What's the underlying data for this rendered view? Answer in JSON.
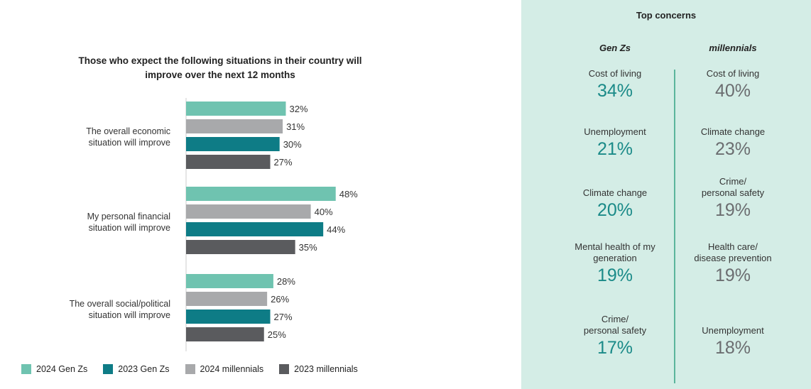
{
  "chart_data": {
    "type": "bar",
    "orientation": "horizontal",
    "title": "Those who expect the following situations in their country will improve over the next 12 months",
    "categories": [
      "The overall economic situation will improve",
      "My personal financial situation will improve",
      "The overall social/political situation will improve"
    ],
    "series": [
      {
        "name": "2024 Gen Zs",
        "color": "#6fc3b0",
        "values": [
          32,
          48,
          28
        ]
      },
      {
        "name": "2024 millennials",
        "color": "#a8a9ab",
        "values": [
          31,
          40,
          26
        ]
      },
      {
        "name": "2023 Gen Zs",
        "color": "#0e7c86",
        "values": [
          30,
          44,
          27
        ]
      },
      {
        "name": "2023 millennials",
        "color": "#5a5b5e",
        "values": [
          27,
          35,
          25
        ]
      }
    ],
    "value_suffix": "%",
    "legend_order": [
      "2024 Gen Zs",
      "2023 Gen Zs",
      "2024 millennials",
      "2023 millennials"
    ],
    "legend_position": "bottom"
  },
  "concerns": {
    "title": "Top concerns",
    "genz": {
      "header": "Gen Zs",
      "color": "#1a8a88",
      "items": [
        {
          "label": "Cost of living",
          "value": "34%"
        },
        {
          "label": "Unemployment",
          "value": "21%"
        },
        {
          "label": "Climate change",
          "value": "20%"
        },
        {
          "label": "Mental health of my generation",
          "value": "19%"
        },
        {
          "label": "Crime/ personal safety",
          "value": "17%"
        }
      ]
    },
    "millennials": {
      "header": "millennials",
      "color": "#6b6d70",
      "items": [
        {
          "label": "Cost of living",
          "value": "40%"
        },
        {
          "label": "Climate change",
          "value": "23%"
        },
        {
          "label": "Crime/ personal safety",
          "value": "19%"
        },
        {
          "label": "Health care/ disease prevention",
          "value": "19%"
        },
        {
          "label": "Unemployment",
          "value": "18%"
        }
      ]
    }
  }
}
